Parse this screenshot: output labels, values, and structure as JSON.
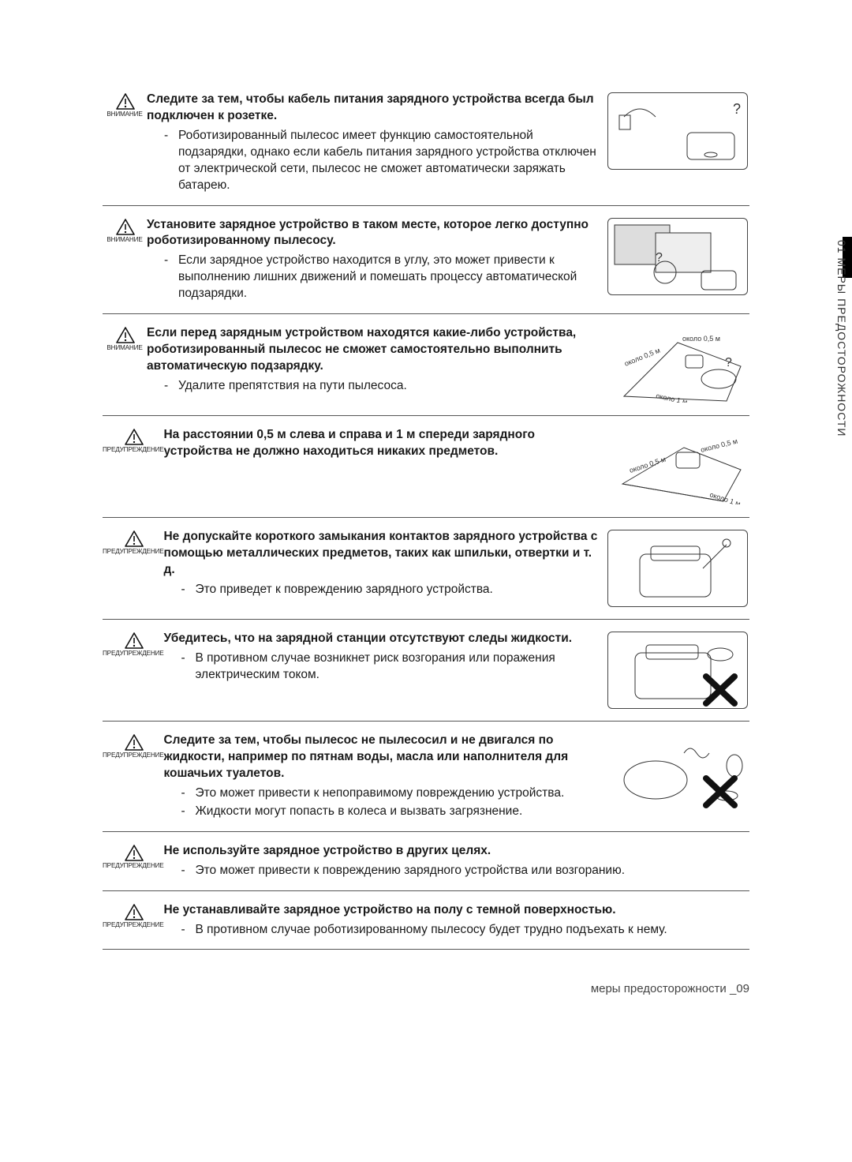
{
  "sideTab": "01 МЕРЫ ПРЕДОСТОРОЖНОСТИ",
  "labels": {
    "caution": "ВНИМАНИЕ",
    "warning": "ПРЕДУПРЕЖДЕНИЕ"
  },
  "sections": [
    {
      "type": "caution",
      "hasIllus": true,
      "title": "Следите за тем, чтобы кабель питания зарядного устройства всегда был подключен к розетке.",
      "bullets": [
        "Роботизированный пылесос имеет функцию самостоятельной подзарядки, однако если кабель питания зарядного устройства отключен от электрической сети, пылесос не сможет автоматически заряжать батарею."
      ]
    },
    {
      "type": "caution",
      "hasIllus": true,
      "title": "Установите зарядное устройство в таком месте, которое легко доступно роботизированному пылесосу.",
      "bullets": [
        "Если зарядное устройство находится в углу, это может привести к выполнению лишних движений и помешать процессу автоматической подзарядки."
      ]
    },
    {
      "type": "caution",
      "hasIllus": true,
      "illusNoFrame": true,
      "illusTextA": "около 0,5 м",
      "illusTextB": "около 0,5 м",
      "illusTextC": "около 1 м",
      "title": "Если перед зарядным устройством находятся какие-либо устройства, роботизированный пылесос не сможет самостоятельно выполнить автоматическую подзарядку.",
      "bullets": [
        "Удалите препятствия на пути пылесоса."
      ]
    },
    {
      "type": "warning",
      "hasIllus": true,
      "illusNoFrame": true,
      "illusTextA": "около 0,5 м",
      "illusTextB": "около 0,5 м",
      "illusTextC": "около 1 м",
      "title": "На расстоянии 0,5 м слева и справа и 1 м спереди зарядного устройства не должно находиться никаких предметов.",
      "bullets": []
    },
    {
      "type": "warning",
      "hasIllus": true,
      "title": "Не допускайте короткого замыкания контактов зарядного устройства с помощью металлических предметов, таких как шпильки, отвертки и т. д.",
      "bullets": [
        "Это приведет к повреждению зарядного устройства."
      ]
    },
    {
      "type": "warning",
      "hasIllus": true,
      "illusX": true,
      "title": "Убедитесь, что на зарядной станции отсутствуют следы жидкости.",
      "bullets": [
        "В противном случае возникнет риск возгорания или поражения электрическим током."
      ]
    },
    {
      "type": "warning",
      "hasIllus": true,
      "illusNoFrame": true,
      "illusX": true,
      "title": "Следите за тем, чтобы пылесос не пылесосил и не двигался по жидкости, например по пятнам воды, масла или наполнителя для кошачьих туалетов.",
      "bullets": [
        "Это может привести к непоправимому повреждению устройства.",
        "Жидкости могут попасть в колеса и вызвать загрязнение."
      ]
    },
    {
      "type": "warning",
      "hasIllus": false,
      "title": "Не используйте зарядное устройство в других целях.",
      "bullets": [
        "Это может привести к повреждению зарядного устройства или возгоранию."
      ]
    },
    {
      "type": "warning",
      "hasIllus": false,
      "title": "Не устанавливайте зарядное устройство на полу с темной поверхностью.",
      "bullets": [
        "В противном случае роботизированному пылесосу будет трудно подъехать к нему."
      ]
    }
  ],
  "footer": "меры предосторожности _09",
  "style": {
    "titleWeight": 700,
    "bodyFontSize": 15.5,
    "iconLabelFontSize": 8.2,
    "ruleColor": "#555555",
    "textColor": "#1a1a1a",
    "pageWidth": 1080,
    "pageHeight": 1472
  }
}
